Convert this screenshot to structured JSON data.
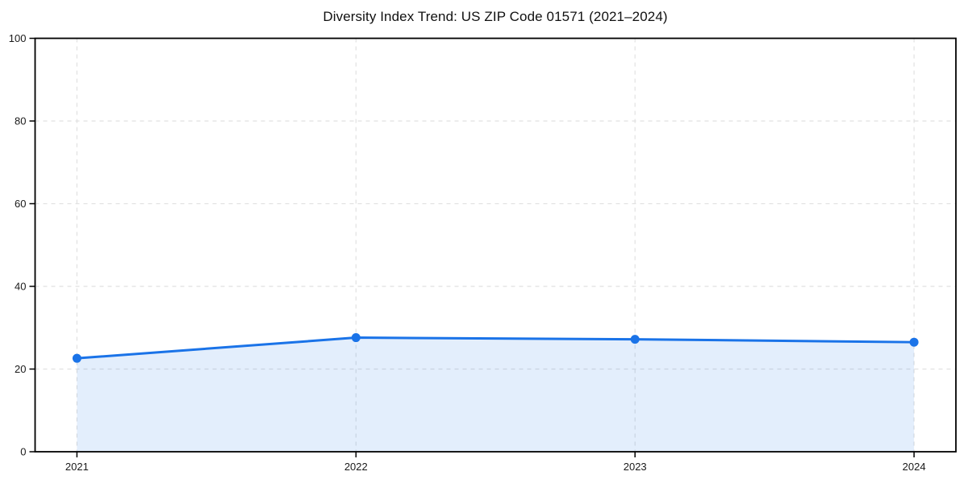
{
  "chart_data": {
    "type": "area",
    "title": "Diversity Index Trend: US ZIP Code 01571 (2021–2024)",
    "x": [
      2021,
      2022,
      2023,
      2024
    ],
    "values": [
      22.6,
      27.6,
      27.2,
      26.5
    ],
    "xlabel": "",
    "ylabel": "",
    "ylim": [
      0,
      100
    ],
    "yticks": [
      0,
      20,
      40,
      60,
      80,
      100
    ],
    "ytick_labels": [
      "0",
      "20",
      "40",
      "60",
      "80",
      "100"
    ],
    "xticks": [
      2021,
      2022,
      2023,
      2024
    ],
    "xtick_labels": [
      "2021",
      "2022",
      "2023",
      "2024"
    ],
    "grid": true,
    "grid_style": "dashed",
    "legend": "none",
    "line_color": "#1a73e8",
    "marker_color": "#1a73e8",
    "fill_color": "rgba(26,115,232,0.12)",
    "grid_color": "#e1e1e1",
    "axis_color": "#000000",
    "text_color": "#1a1a1a"
  }
}
